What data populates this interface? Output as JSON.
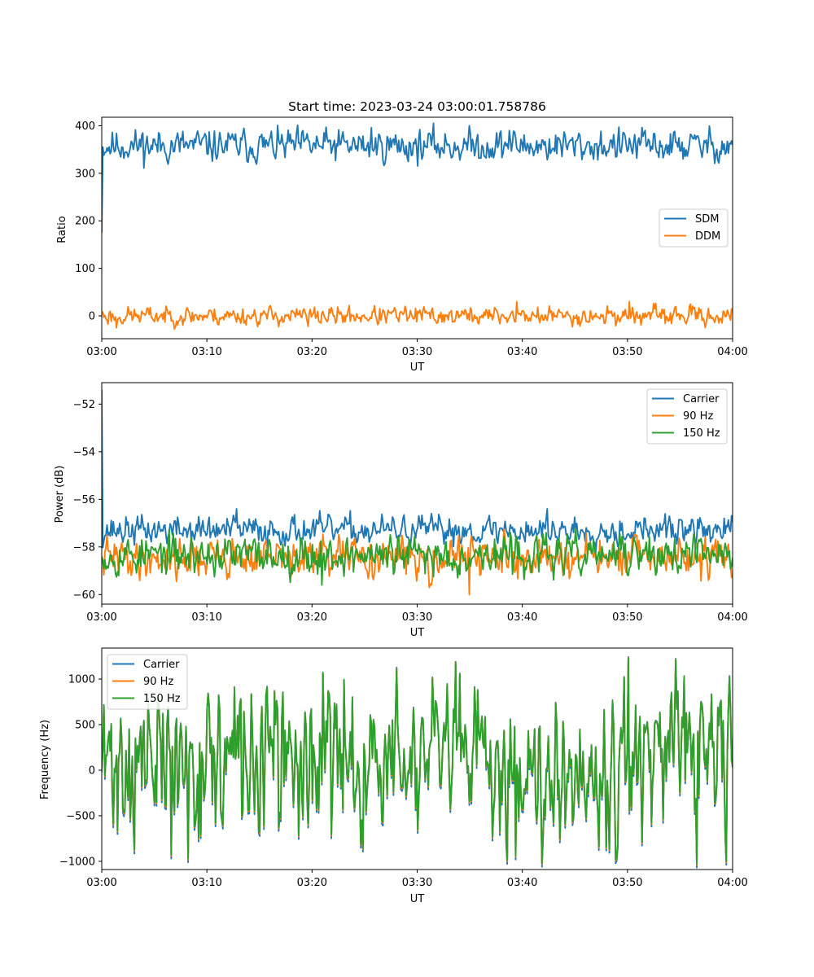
{
  "title": "Start time: 2023-03-24 03:00:01.758786",
  "chart_data": [
    {
      "type": "line",
      "xlabel": "UT",
      "ylabel": "Ratio",
      "xticks": [
        "03:00",
        "03:10",
        "03:20",
        "03:30",
        "03:40",
        "03:50",
        "04:00"
      ],
      "xlim_minutes": [
        0,
        60
      ],
      "yticks": [
        0,
        100,
        200,
        300,
        400
      ],
      "ylim": [
        -48,
        418
      ],
      "legend_position": "center-right",
      "grid": false,
      "series": [
        {
          "name": "SDM",
          "color": "#1f77b4",
          "start": 175,
          "level": 358,
          "amplitude": 16,
          "seed": 11,
          "peaks": [
            [
              25.6,
              396
            ],
            [
              30.3,
              392
            ],
            [
              38.8,
              390
            ],
            [
              3.9,
              385
            ]
          ]
        },
        {
          "name": "DDM",
          "color": "#ff7f0e",
          "start": 5,
          "level": 0,
          "amplitude": 9,
          "seed": 23,
          "peaks": [
            [
              39.5,
              30
            ],
            [
              50.2,
              30
            ],
            [
              1.4,
              -25
            ],
            [
              19.6,
              -22
            ]
          ]
        }
      ]
    },
    {
      "type": "line",
      "xlabel": "UT",
      "ylabel": "Power (dB)",
      "xticks": [
        "03:00",
        "03:10",
        "03:20",
        "03:30",
        "03:40",
        "03:50",
        "04:00"
      ],
      "xlim_minutes": [
        0,
        60
      ],
      "yticks": [
        -60,
        -58,
        -56,
        -54,
        -52
      ],
      "ylim": [
        -60.4,
        -51.1
      ],
      "legend_position": "top-right",
      "grid": false,
      "series": [
        {
          "name": "Carrier",
          "color": "#1f77b4",
          "start": -51.4,
          "level": -57.3,
          "amplitude": 0.28,
          "seed": 37,
          "peaks": [
            [
              42.4,
              -56.4
            ],
            [
              12.8,
              -56.4
            ]
          ]
        },
        {
          "name": "90 Hz",
          "color": "#ff7f0e",
          "start": -58.6,
          "level": -58.45,
          "amplitude": 0.38,
          "seed": 41,
          "peaks": [
            [
              35.0,
              -60.0
            ],
            [
              31.2,
              -59.7
            ]
          ]
        },
        {
          "name": "150 Hz",
          "color": "#2ca02c",
          "start": -58.4,
          "level": -58.35,
          "amplitude": 0.38,
          "seed": 53,
          "peaks": [
            [
              20.9,
              -59.6
            ],
            [
              42.3,
              -57.4
            ]
          ]
        }
      ]
    },
    {
      "type": "line",
      "xlabel": "UT",
      "ylabel": "Frequency (Hz)",
      "xticks": [
        "03:00",
        "03:10",
        "03:20",
        "03:30",
        "03:40",
        "03:50",
        "04:00"
      ],
      "xlim_minutes": [
        0,
        60
      ],
      "yticks": [
        -1000,
        -500,
        0,
        500,
        1000
      ],
      "ylim": [
        -1090,
        1340
      ],
      "legend_position": "top-left",
      "grid": false,
      "series": [
        {
          "name": "Carrier",
          "color": "#1f77b4",
          "offset": -40
        },
        {
          "name": "90 Hz",
          "color": "#ff7f0e",
          "offset": -12
        },
        {
          "name": "150 Hz",
          "color": "#2ca02c",
          "offset": 0
        }
      ],
      "shared_signal": {
        "level": 80,
        "amplitude": 380,
        "seed": 71,
        "peaks": [
          [
            50.1,
            1230
          ],
          [
            8.2,
            -970
          ],
          [
            39.4,
            -940
          ],
          [
            21.0,
            1060
          ],
          [
            6.6,
            -930
          ],
          [
            34.1,
            1050
          ]
        ]
      }
    }
  ]
}
